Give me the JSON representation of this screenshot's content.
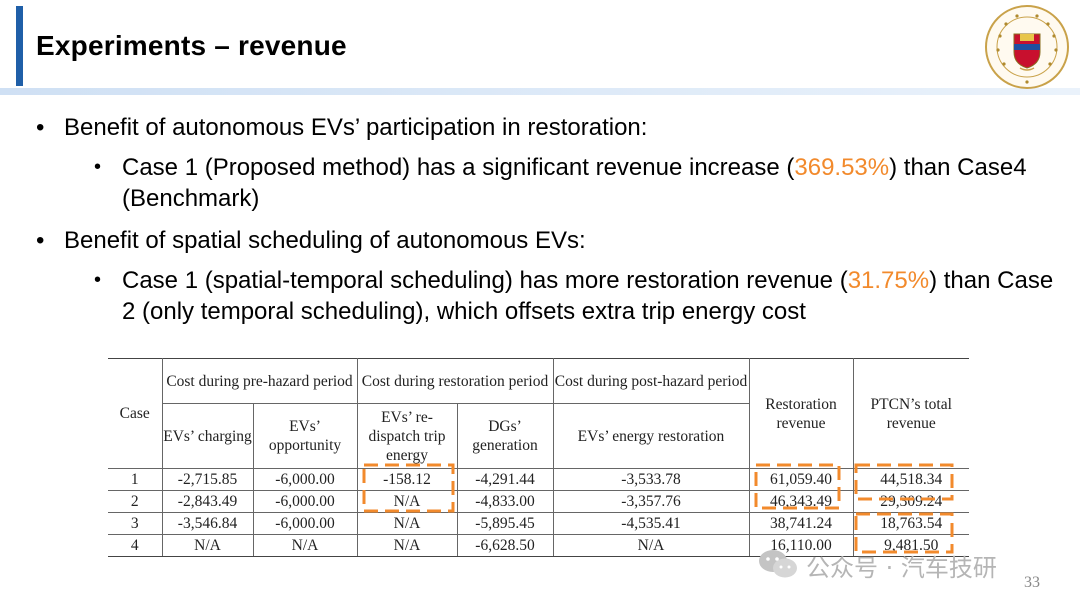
{
  "slide": {
    "title": "Experiments – revenue",
    "page_number": "33",
    "watermark": "公众号 · 汽车技研"
  },
  "colors": {
    "accent_bar": "#1f5fa8",
    "highlight": "#f28a2c",
    "dashed_box": "#f28a2c"
  },
  "bullets": [
    {
      "level": 1,
      "text": "Benefit of autonomous EVs’ participation in restoration:"
    },
    {
      "level": 2,
      "pre": "Case 1 (Proposed method) has a significant revenue increase (",
      "highlight": "369.53%",
      "post": ") than Case4 (Benchmark)"
    },
    {
      "level": 1,
      "text": "Benefit of spatial scheduling of autonomous EVs:"
    },
    {
      "level": 2,
      "pre": "Case 1 (spatial-temporal scheduling) has more restoration revenue (",
      "highlight": "31.75%",
      "post": ") than Case 2 (only temporal scheduling), which offsets extra trip energy cost"
    }
  ],
  "table": {
    "group_headers": {
      "case": "Case",
      "pre": "Cost during pre-hazard period",
      "restoration": "Cost during restoration period",
      "post": "Cost during post-hazard period",
      "restoration_revenue": "Restoration revenue",
      "total_revenue": "PTCN’s total revenue"
    },
    "sub_headers": {
      "evs_charging": "EVs’ charging",
      "evs_opportunity": "EVs’ opportunity",
      "evs_redispatch": "EVs’ re-dispatch trip energy",
      "dgs_generation": "DGs’ generation",
      "evs_energy_restoration": "EVs’ energy restoration"
    },
    "rows": [
      [
        "1",
        "-2,715.85",
        "-6,000.00",
        "-158.12",
        "-4,291.44",
        "-3,533.78",
        "61,059.40",
        "44,518.34"
      ],
      [
        "2",
        "-2,843.49",
        "-6,000.00",
        "N/A",
        "-4,833.00",
        "-3,357.76",
        "46,343.49",
        "29,309.24"
      ],
      [
        "3",
        "-3,546.84",
        "-6,000.00",
        "N/A",
        "-5,895.45",
        "-4,535.41",
        "38,741.24",
        "18,763.54"
      ],
      [
        "4",
        "N/A",
        "N/A",
        "N/A",
        "-6,628.50",
        "N/A",
        "16,110.00",
        "9,481.50"
      ]
    ]
  }
}
